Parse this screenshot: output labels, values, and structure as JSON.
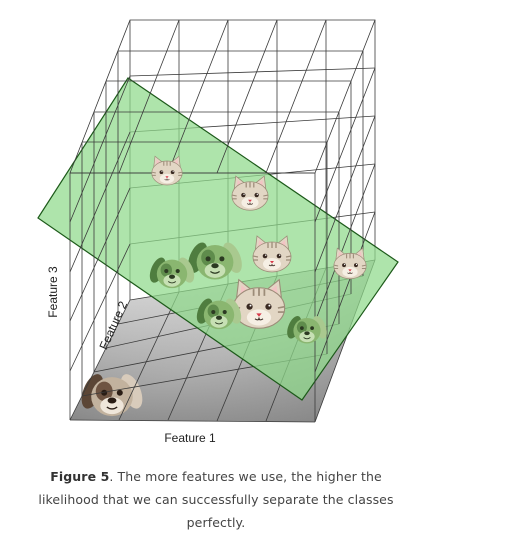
{
  "figure": {
    "axes": {
      "x_label": "Feature 1",
      "y_label": "Feature 2",
      "z_label": "Feature 3"
    },
    "colors": {
      "plane": "#8fd98a",
      "plane_edge": "#1d5a1a",
      "grid": "#3a3a3a",
      "floor_light": "#f4f4f4",
      "floor_dark": "#6e6e6e",
      "cat_fur": "#e2d6c4",
      "dog_fur_green": "#6a9a55",
      "dog_fur_brown": "#a8957e"
    },
    "icons": [
      "cat-face-icon",
      "dog-face-icon"
    ]
  },
  "caption": {
    "label": "Figure 5",
    "text": ". The more features we use, the higher the likelihood that we can successfully separate the classes perfectly."
  }
}
